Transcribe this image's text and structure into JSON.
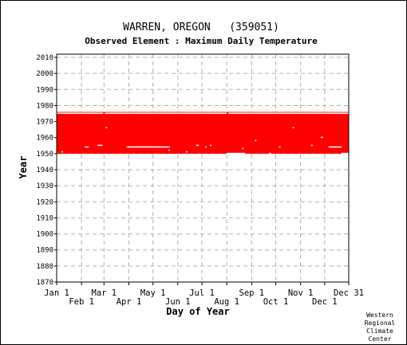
{
  "chart_data": {
    "type": "bar",
    "title": "WARREN, OREGON   (359051)",
    "subtitle": "Observed Element : Maximum Daily Temperature",
    "xlabel": "Day of Year",
    "ylabel": "Year",
    "xlim": [
      1,
      365
    ],
    "ylim": [
      1870,
      2012
    ],
    "y_ticks": [
      1870,
      1880,
      1890,
      1900,
      1910,
      1920,
      1930,
      1940,
      1950,
      1960,
      1970,
      1980,
      1990,
      2000,
      2010
    ],
    "x_ticks_upper": [
      {
        "label": "Jan 1",
        "day": 1
      },
      {
        "label": "Mar 1",
        "day": 60
      },
      {
        "label": "May 1",
        "day": 121
      },
      {
        "label": "Jul 1",
        "day": 182
      },
      {
        "label": "Sep 1",
        "day": 244
      },
      {
        "label": "Nov 1",
        "day": 305
      },
      {
        "label": "Dec 31",
        "day": 365
      }
    ],
    "x_ticks_lower": [
      {
        "label": "Feb 1",
        "day": 32
      },
      {
        "label": "Apr 1",
        "day": 91
      },
      {
        "label": "Jun 1",
        "day": 152
      },
      {
        "label": "Aug 1",
        "day": 213
      },
      {
        "label": "Oct 1",
        "day": 274
      },
      {
        "label": "Dec 1",
        "day": 335
      }
    ],
    "grid": true,
    "series": [
      {
        "color": "#ff0000",
        "coverage": [
          {
            "day_start": 1,
            "day_end": 365,
            "year_start": 1950,
            "year_end": 1976
          }
        ],
        "gaps": [
          {
            "day_start": 1,
            "day_end": 59,
            "year": 1975
          },
          {
            "day_start": 61,
            "day_end": 213,
            "year": 1975
          },
          {
            "day_start": 215,
            "day_end": 365,
            "year": 1975
          },
          {
            "day_start": 7,
            "day_end": 9,
            "year": 1951
          },
          {
            "day_start": 36,
            "day_end": 41,
            "year": 1954
          },
          {
            "day_start": 52,
            "day_end": 58,
            "year": 1955
          },
          {
            "day_start": 62,
            "day_end": 64,
            "year": 1966
          },
          {
            "day_start": 88,
            "day_end": 142,
            "year": 1954
          },
          {
            "day_start": 140,
            "day_end": 142,
            "year": 1952
          },
          {
            "day_start": 162,
            "day_end": 164,
            "year": 1951
          },
          {
            "day_start": 175,
            "day_end": 178,
            "year": 1955
          },
          {
            "day_start": 186,
            "day_end": 188,
            "year": 1954
          },
          {
            "day_start": 192,
            "day_end": 194,
            "year": 1955
          },
          {
            "day_start": 213,
            "day_end": 236,
            "year": 1950
          },
          {
            "day_start": 232,
            "day_end": 234,
            "year": 1953
          },
          {
            "day_start": 248,
            "day_end": 250,
            "year": 1958
          },
          {
            "day_start": 266,
            "day_end": 268,
            "year": 1950
          },
          {
            "day_start": 278,
            "day_end": 280,
            "year": 1954
          },
          {
            "day_start": 295,
            "day_end": 297,
            "year": 1966
          },
          {
            "day_start": 318,
            "day_end": 320,
            "year": 1955
          },
          {
            "day_start": 330,
            "day_end": 333,
            "year": 1960
          },
          {
            "day_start": 340,
            "day_end": 356,
            "year": 1954
          },
          {
            "day_start": 356,
            "day_end": 365,
            "year": 1950
          }
        ]
      }
    ]
  },
  "credit": [
    "Western",
    "Regional",
    "Climate",
    "Center"
  ]
}
